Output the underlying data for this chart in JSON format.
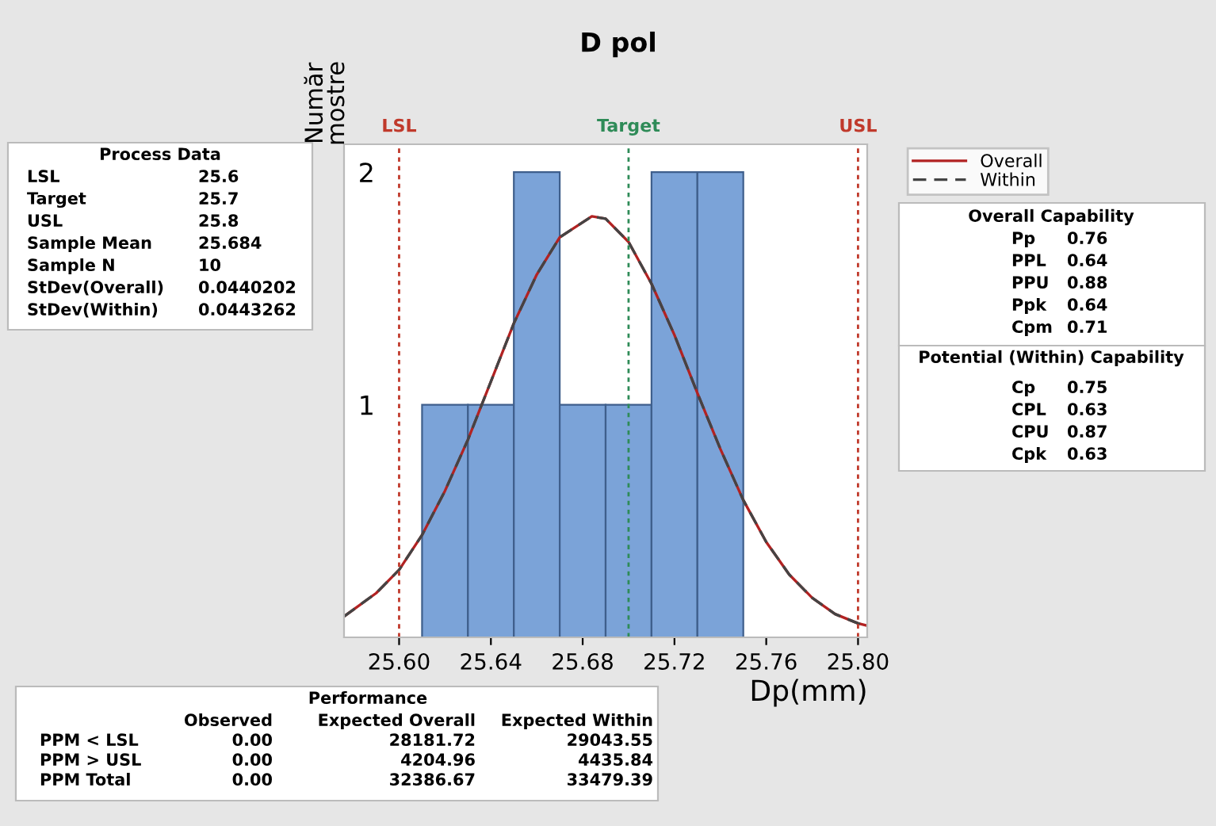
{
  "chart_data": {
    "type": "histogram",
    "title": "D pol",
    "xlabel": "Dp(mm)",
    "ylabel": "Număr\nmostre",
    "bins": [
      25.61,
      25.63,
      25.65,
      25.67,
      25.69,
      25.71,
      25.73,
      25.75
    ],
    "values": [
      1,
      1,
      2,
      1,
      1,
      2,
      2
    ],
    "color": "#7ba3d8",
    "series": [
      {
        "name": "Overall",
        "type": "line",
        "color": "#b22222",
        "line_style": "solid",
        "x": [
          25.576,
          25.59,
          25.6,
          25.61,
          25.62,
          25.63,
          25.64,
          25.65,
          25.66,
          25.67,
          25.684,
          25.69,
          25.7,
          25.71,
          25.72,
          25.73,
          25.74,
          25.75,
          25.76,
          25.77,
          25.78,
          25.79,
          25.8,
          25.804
        ],
        "values": [
          0.09,
          0.19,
          0.29,
          0.44,
          0.63,
          0.85,
          1.1,
          1.35,
          1.56,
          1.72,
          1.81,
          1.8,
          1.7,
          1.52,
          1.3,
          1.05,
          0.81,
          0.59,
          0.41,
          0.27,
          0.17,
          0.1,
          0.06,
          0.05
        ]
      },
      {
        "name": "Within",
        "type": "line",
        "color": "#444444",
        "line_style": "dashed",
        "x": [
          25.576,
          25.59,
          25.6,
          25.61,
          25.62,
          25.63,
          25.64,
          25.65,
          25.66,
          25.67,
          25.684,
          25.69,
          25.7,
          25.71,
          25.72,
          25.73,
          25.74,
          25.75,
          25.76,
          25.77,
          25.78,
          25.79,
          25.8,
          25.804
        ],
        "values": [
          0.09,
          0.19,
          0.29,
          0.44,
          0.63,
          0.85,
          1.1,
          1.35,
          1.56,
          1.72,
          1.81,
          1.8,
          1.7,
          1.52,
          1.3,
          1.05,
          0.81,
          0.59,
          0.41,
          0.27,
          0.17,
          0.1,
          0.06,
          0.05
        ]
      }
    ],
    "xlim": [
      25.576,
      25.804
    ],
    "ylim": [
      0,
      2.12
    ],
    "xticks": [
      {
        "value": 25.6,
        "label": "25.60"
      },
      {
        "value": 25.64,
        "label": "25.64"
      },
      {
        "value": 25.68,
        "label": "25.68"
      },
      {
        "value": 25.72,
        "label": "25.72"
      },
      {
        "value": 25.76,
        "label": "25.76"
      },
      {
        "value": 25.8,
        "label": "25.80"
      }
    ],
    "yticks": [
      1,
      2
    ],
    "ref_lines": [
      {
        "axis": "x",
        "value": 25.6,
        "label": "LSL",
        "color": "#c0392b",
        "line_style": "dotted"
      },
      {
        "axis": "x",
        "value": 25.7,
        "label": "Target",
        "color": "#2e8b57",
        "line_style": "dotted"
      },
      {
        "axis": "x",
        "value": 25.8,
        "label": "USL",
        "color": "#c0392b",
        "line_style": "dotted"
      }
    ],
    "grid": false,
    "legend": "right",
    "annotations": [
      "Process Data",
      "LSL\t25.6",
      "Target\t25.7",
      "USL\t25.8",
      "Sample Mean\t25.684",
      "Sample N\t10",
      "StDev(Overall)\t0.0440202",
      "StDev(Within)\t0.0443262",
      "Overall Capability",
      "Pp\t0.76",
      "PPL\t0.64",
      "PPU\t0.88",
      "Ppk\t0.64",
      "Cpm\t0.71",
      "Potential (Within) Capability",
      "Cp\t0.75",
      "CPL\t0.63",
      "CPU\t0.87",
      "Cpk\t0.63",
      "Performance",
      "\tObserved\tExpected Overall\tExpected Within",
      "PPM < LSL\t0.00\t28181.72\t29043.55",
      "PPM > USL\t0.00\t4204.96\t4435.84",
      "PPM Total\t0.00\t32386.67\t33479.39"
    ]
  }
}
